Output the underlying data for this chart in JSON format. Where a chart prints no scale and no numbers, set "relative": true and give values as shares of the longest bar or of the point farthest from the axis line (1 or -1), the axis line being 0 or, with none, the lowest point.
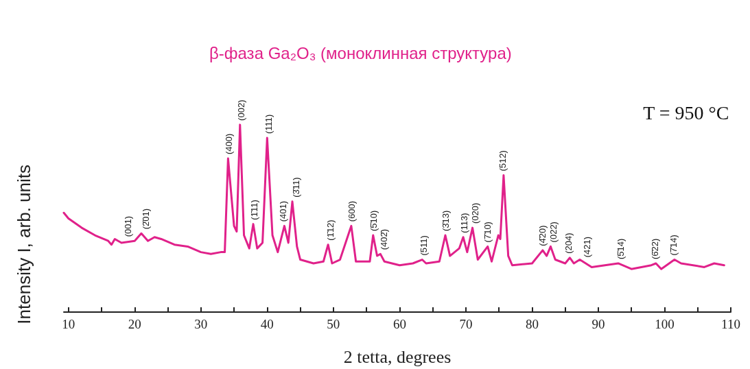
{
  "chart_data": {
    "type": "line",
    "title": "β-фаза Ga₂O₃ (моноклинная структура)",
    "xlabel": "2 tetta, degrees",
    "ylabel": "Intensity I, arb. units",
    "relative": true,
    "grid": false,
    "marker": "none",
    "line_style": "solid",
    "xlim": [
      9.3,
      110
    ],
    "xticks": [
      10,
      {
        "value": 15,
        "label": null
      },
      20,
      {
        "value": 25,
        "label": null
      },
      30,
      {
        "value": 35,
        "label": null
      },
      40,
      {
        "value": 45,
        "label": null
      },
      50,
      {
        "value": 55,
        "label": null
      },
      60,
      {
        "value": 65,
        "label": null
      },
      70,
      {
        "value": 75,
        "label": null
      },
      80,
      {
        "value": 85,
        "label": null
      },
      90,
      {
        "value": 95,
        "label": null
      },
      100,
      {
        "value": 105,
        "label": null
      },
      110
    ],
    "series": [
      {
        "color": "#e0218a",
        "x": [
          9.3,
          10,
          12,
          14,
          16,
          16.5,
          17,
          18,
          20,
          21,
          22,
          23,
          24,
          26,
          28,
          30,
          31.5,
          33,
          33.6,
          34.1,
          35.0,
          35.4,
          35.9,
          36.5,
          37.3,
          37.9,
          38.5,
          39.3,
          40.0,
          40.8,
          41.6,
          42.6,
          43.2,
          43.8,
          44.5,
          45,
          47,
          48.5,
          49.2,
          49.8,
          51,
          52.7,
          53.4,
          55.5,
          56.0,
          56.6,
          57.1,
          57.7,
          60,
          62,
          63.4,
          64,
          66,
          66.9,
          67.6,
          69,
          69.6,
          70.2,
          71.0,
          71.8,
          73.3,
          73.9,
          74.9,
          75.2,
          75.7,
          76.4,
          77,
          80,
          81.6,
          82.2,
          82.8,
          83.5,
          85,
          85.7,
          86.3,
          87.2,
          89,
          93,
          95,
          98,
          98.7,
          99.5,
          101.5,
          102.5,
          106,
          107.5,
          109
        ],
        "values": [
          0.53,
          0.5,
          0.45,
          0.41,
          0.38,
          0.36,
          0.39,
          0.37,
          0.38,
          0.42,
          0.38,
          0.4,
          0.39,
          0.36,
          0.35,
          0.32,
          0.31,
          0.32,
          0.32,
          0.82,
          0.46,
          0.43,
          1,
          0.41,
          0.34,
          0.47,
          0.34,
          0.37,
          0.93,
          0.41,
          0.32,
          0.46,
          0.37,
          0.59,
          0.35,
          0.28,
          0.26,
          0.27,
          0.36,
          0.26,
          0.28,
          0.46,
          0.27,
          0.27,
          0.41,
          0.3,
          0.31,
          0.27,
          0.25,
          0.26,
          0.28,
          0.26,
          0.27,
          0.41,
          0.3,
          0.34,
          0.4,
          0.32,
          0.45,
          0.28,
          0.35,
          0.27,
          0.41,
          0.39,
          0.73,
          0.3,
          0.25,
          0.26,
          0.33,
          0.3,
          0.35,
          0.28,
          0.26,
          0.29,
          0.26,
          0.28,
          0.24,
          0.26,
          0.23,
          0.25,
          0.26,
          0.23,
          0.28,
          0.26,
          0.24,
          0.26,
          0.25
        ]
      }
    ],
    "annotations": [
      "T = 950 °C",
      {
        "text": "(001)",
        "x": 19.0,
        "y": 0.38
      },
      {
        "text": "(2̄01)",
        "x": 21.7,
        "y": 0.42
      },
      {
        "text": "(400)",
        "x": 34.2,
        "y": 0.82
      },
      {
        "text": "(002)",
        "x": 36.1,
        "y": 1
      },
      {
        "text": "(1̄11)",
        "x": 38.1,
        "y": 0.47
      },
      {
        "text": "(111)",
        "x": 40.2,
        "y": 0.93
      },
      {
        "text": "(401)",
        "x": 42.4,
        "y": 0.46
      },
      {
        "text": "(3̄11)",
        "x": 44.4,
        "y": 0.59
      },
      {
        "text": "(1̄12)",
        "x": 49.5,
        "y": 0.36
      },
      {
        "text": "(600)",
        "x": 52.8,
        "y": 0.46
      },
      {
        "text": "(5̄10)",
        "x": 56.1,
        "y": 0.41
      },
      {
        "text": "(402̄)",
        "x": 57.6,
        "y": 0.31
      },
      {
        "text": "(511)",
        "x": 63.6,
        "y": 0.28
      },
      {
        "text": "(3̄13)",
        "x": 67.0,
        "y": 0.41
      },
      {
        "text": "(113)",
        "x": 69.8,
        "y": 0.4
      },
      {
        "text": "(020)",
        "x": 71.4,
        "y": 0.45
      },
      {
        "text": "(7̄10)",
        "x": 73.3,
        "y": 0.35
      },
      {
        "text": "(512)",
        "x": 75.6,
        "y": 0.73
      },
      {
        "text": "(4̄20)",
        "x": 81.6,
        "y": 0.33
      },
      {
        "text": "(022)",
        "x": 83.2,
        "y": 0.35
      },
      {
        "text": "(204)",
        "x": 85.5,
        "y": 0.29
      },
      {
        "text": "(421)",
        "x": 88.3,
        "y": 0.27
      },
      {
        "text": "(5̄14)",
        "x": 93.4,
        "y": 0.26
      },
      {
        "text": "(6̄22)",
        "x": 98.6,
        "y": 0.26
      },
      {
        "text": "(7̄14)",
        "x": 101.4,
        "y": 0.28
      }
    ]
  }
}
